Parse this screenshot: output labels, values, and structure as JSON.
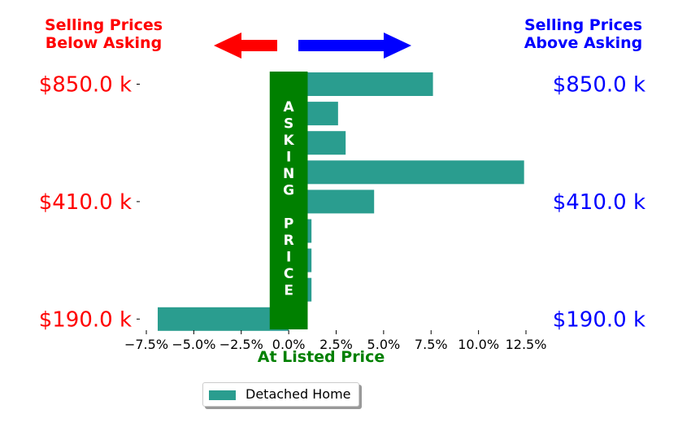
{
  "header": {
    "left_line1": "Selling Prices",
    "left_line2": "Below Asking",
    "right_line1": "Selling Prices",
    "right_line2": "Above Asking"
  },
  "colors": {
    "below": "#ff0000",
    "above": "#0000ff",
    "bar": "#2a9d8f",
    "asking": "#008000"
  },
  "chart_data": {
    "type": "bar",
    "orientation": "horizontal",
    "xlabel": "At Listed Price",
    "xlim": [
      -7.5,
      12.5
    ],
    "x_ticks": [
      -7.5,
      -5.0,
      -2.5,
      0.0,
      2.5,
      5.0,
      7.5,
      10.0,
      12.5
    ],
    "x_tick_labels": [
      "−7.5%",
      "−5.0%",
      "−2.5%",
      "0.0%",
      "2.5%",
      "5.0%",
      "7.5%",
      "10.0%",
      "12.5%"
    ],
    "y_tick_labels_left": [
      "$850.0 k",
      "$410.0 k",
      "$190.0 k"
    ],
    "y_tick_labels_right": [
      "$850.0 k",
      "$410.0 k",
      "$190.0 k"
    ],
    "y_tick_rows": [
      0,
      4,
      8
    ],
    "series": [
      {
        "name": "Detached Home",
        "values": [
          7.6,
          2.6,
          3.0,
          12.4,
          4.5,
          1.2,
          1.2,
          1.2,
          -6.9
        ]
      }
    ],
    "asking_band": {
      "from": -1.0,
      "to": 1.0,
      "text": "ASKING PRICE"
    },
    "legend_position": "bottom-center",
    "grid": false
  }
}
